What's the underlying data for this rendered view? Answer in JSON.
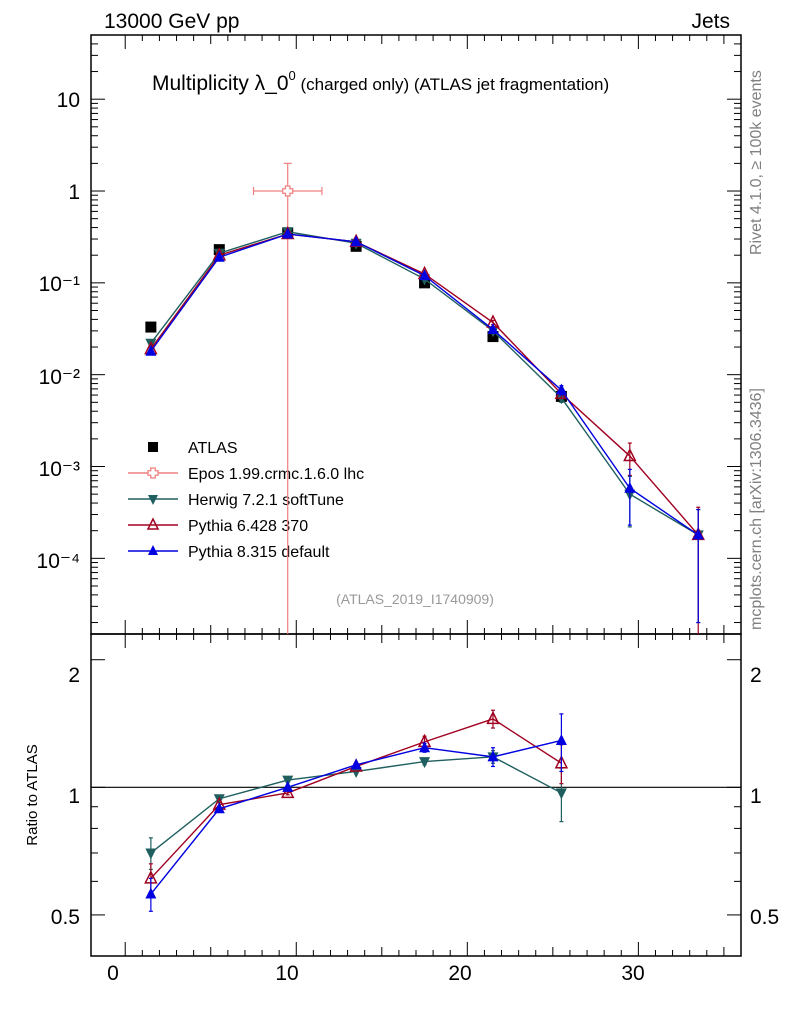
{
  "header": {
    "left": "13000 GeV pp",
    "right": "Jets"
  },
  "side": {
    "rivet": "Rivet 4.1.0, ≥ 100k events",
    "site": "mcplots.cern.ch [arXiv:1306.3436]"
  },
  "chart_data": {
    "type": "line",
    "title_main": "Multiplicity λ_0",
    "title_sup": "0",
    "title_rest": " (charged only) (ATLAS jet fragmentation)",
    "analysis_label": "(ATLAS_2019_I1740909)",
    "xlabel": "",
    "ylabel_ratio": "Ratio to ATLAS",
    "xlim": [
      -2,
      36
    ],
    "ylim_main": [
      1.5e-05,
      50
    ],
    "ylim_ratio": [
      0.4,
      2.3
    ],
    "x_ticks": [
      "0",
      "10",
      "20",
      "30"
    ],
    "y_ticks_main": [
      "10",
      "1",
      "10⁻¹",
      "10⁻²",
      "10⁻³",
      "10⁻⁴"
    ],
    "y_ticks_ratio": [
      "2",
      "1",
      "0.5"
    ],
    "series": [
      {
        "name": "ATLAS",
        "color": "#000000",
        "marker": "square",
        "x": [
          1.5,
          5.5,
          9.5,
          13.5,
          17.5,
          21.5,
          25.5
        ],
        "y": [
          0.033,
          0.23,
          0.35,
          0.25,
          0.1,
          0.026,
          0.0058
        ],
        "yerr": [
          0.002,
          0.01,
          0.01,
          0.01,
          0.005,
          0.002,
          0.0008
        ]
      },
      {
        "name": "Epos 1.99.crmc.1.6.0 lhc",
        "color": "#f08080",
        "marker": "open-cross",
        "x": [
          9.5
        ],
        "xerr": [
          2.0
        ],
        "y": [
          1.0
        ],
        "ylo": [
          1e-05
        ],
        "yhi": [
          2.0
        ]
      },
      {
        "name": "Herwig 7.2.1 softTune",
        "color": "#1f5f5f",
        "marker": "down-triangle",
        "x": [
          1.5,
          5.5,
          9.5,
          13.5,
          17.5,
          21.5,
          25.5,
          29.5,
          33.5
        ],
        "y": [
          0.022,
          0.21,
          0.36,
          0.27,
          0.11,
          0.03,
          0.0056,
          0.0005,
          0.00018
        ],
        "yerr": [
          0.001,
          0.005,
          0.005,
          0.005,
          0.003,
          0.001,
          0.0006,
          0.00028,
          0.00016
        ],
        "ratio": [
          0.7,
          0.94,
          1.04,
          1.09,
          1.15,
          1.18,
          0.97
        ],
        "ratio_err": [
          0.06,
          0.01,
          0.01,
          0.01,
          0.02,
          0.04,
          0.14
        ]
      },
      {
        "name": "Pythia 6.428 370",
        "color": "#a00020",
        "marker": "open-triangle",
        "x": [
          1.5,
          5.5,
          9.5,
          13.5,
          17.5,
          21.5,
          25.5,
          29.5,
          33.5
        ],
        "y": [
          0.019,
          0.2,
          0.34,
          0.28,
          0.125,
          0.037,
          0.0062,
          0.0013,
          0.00018
        ],
        "yerr": [
          0.001,
          0.005,
          0.005,
          0.005,
          0.003,
          0.002,
          0.0007,
          0.0005,
          0.00018
        ],
        "ratio": [
          0.61,
          0.91,
          0.97,
          1.12,
          1.28,
          1.45,
          1.14
        ],
        "ratio_err": [
          0.05,
          0.01,
          0.01,
          0.01,
          0.04,
          0.07,
          0.12
        ]
      },
      {
        "name": "Pythia 8.315 default",
        "color": "#0000e0",
        "marker": "up-triangle",
        "x": [
          1.5,
          5.5,
          9.5,
          13.5,
          17.5,
          21.5,
          25.5,
          29.5,
          33.5
        ],
        "y": [
          0.018,
          0.19,
          0.34,
          0.28,
          0.12,
          0.031,
          0.0068,
          0.00058,
          0.00018
        ],
        "yerr": [
          0.001,
          0.005,
          0.005,
          0.005,
          0.003,
          0.001,
          0.0008,
          0.00035,
          0.00016
        ],
        "ratio": [
          0.56,
          0.89,
          1.0,
          1.13,
          1.24,
          1.18,
          1.29
        ],
        "ratio_err": [
          0.05,
          0.01,
          0.01,
          0.01,
          0.03,
          0.06,
          0.2
        ]
      }
    ]
  }
}
